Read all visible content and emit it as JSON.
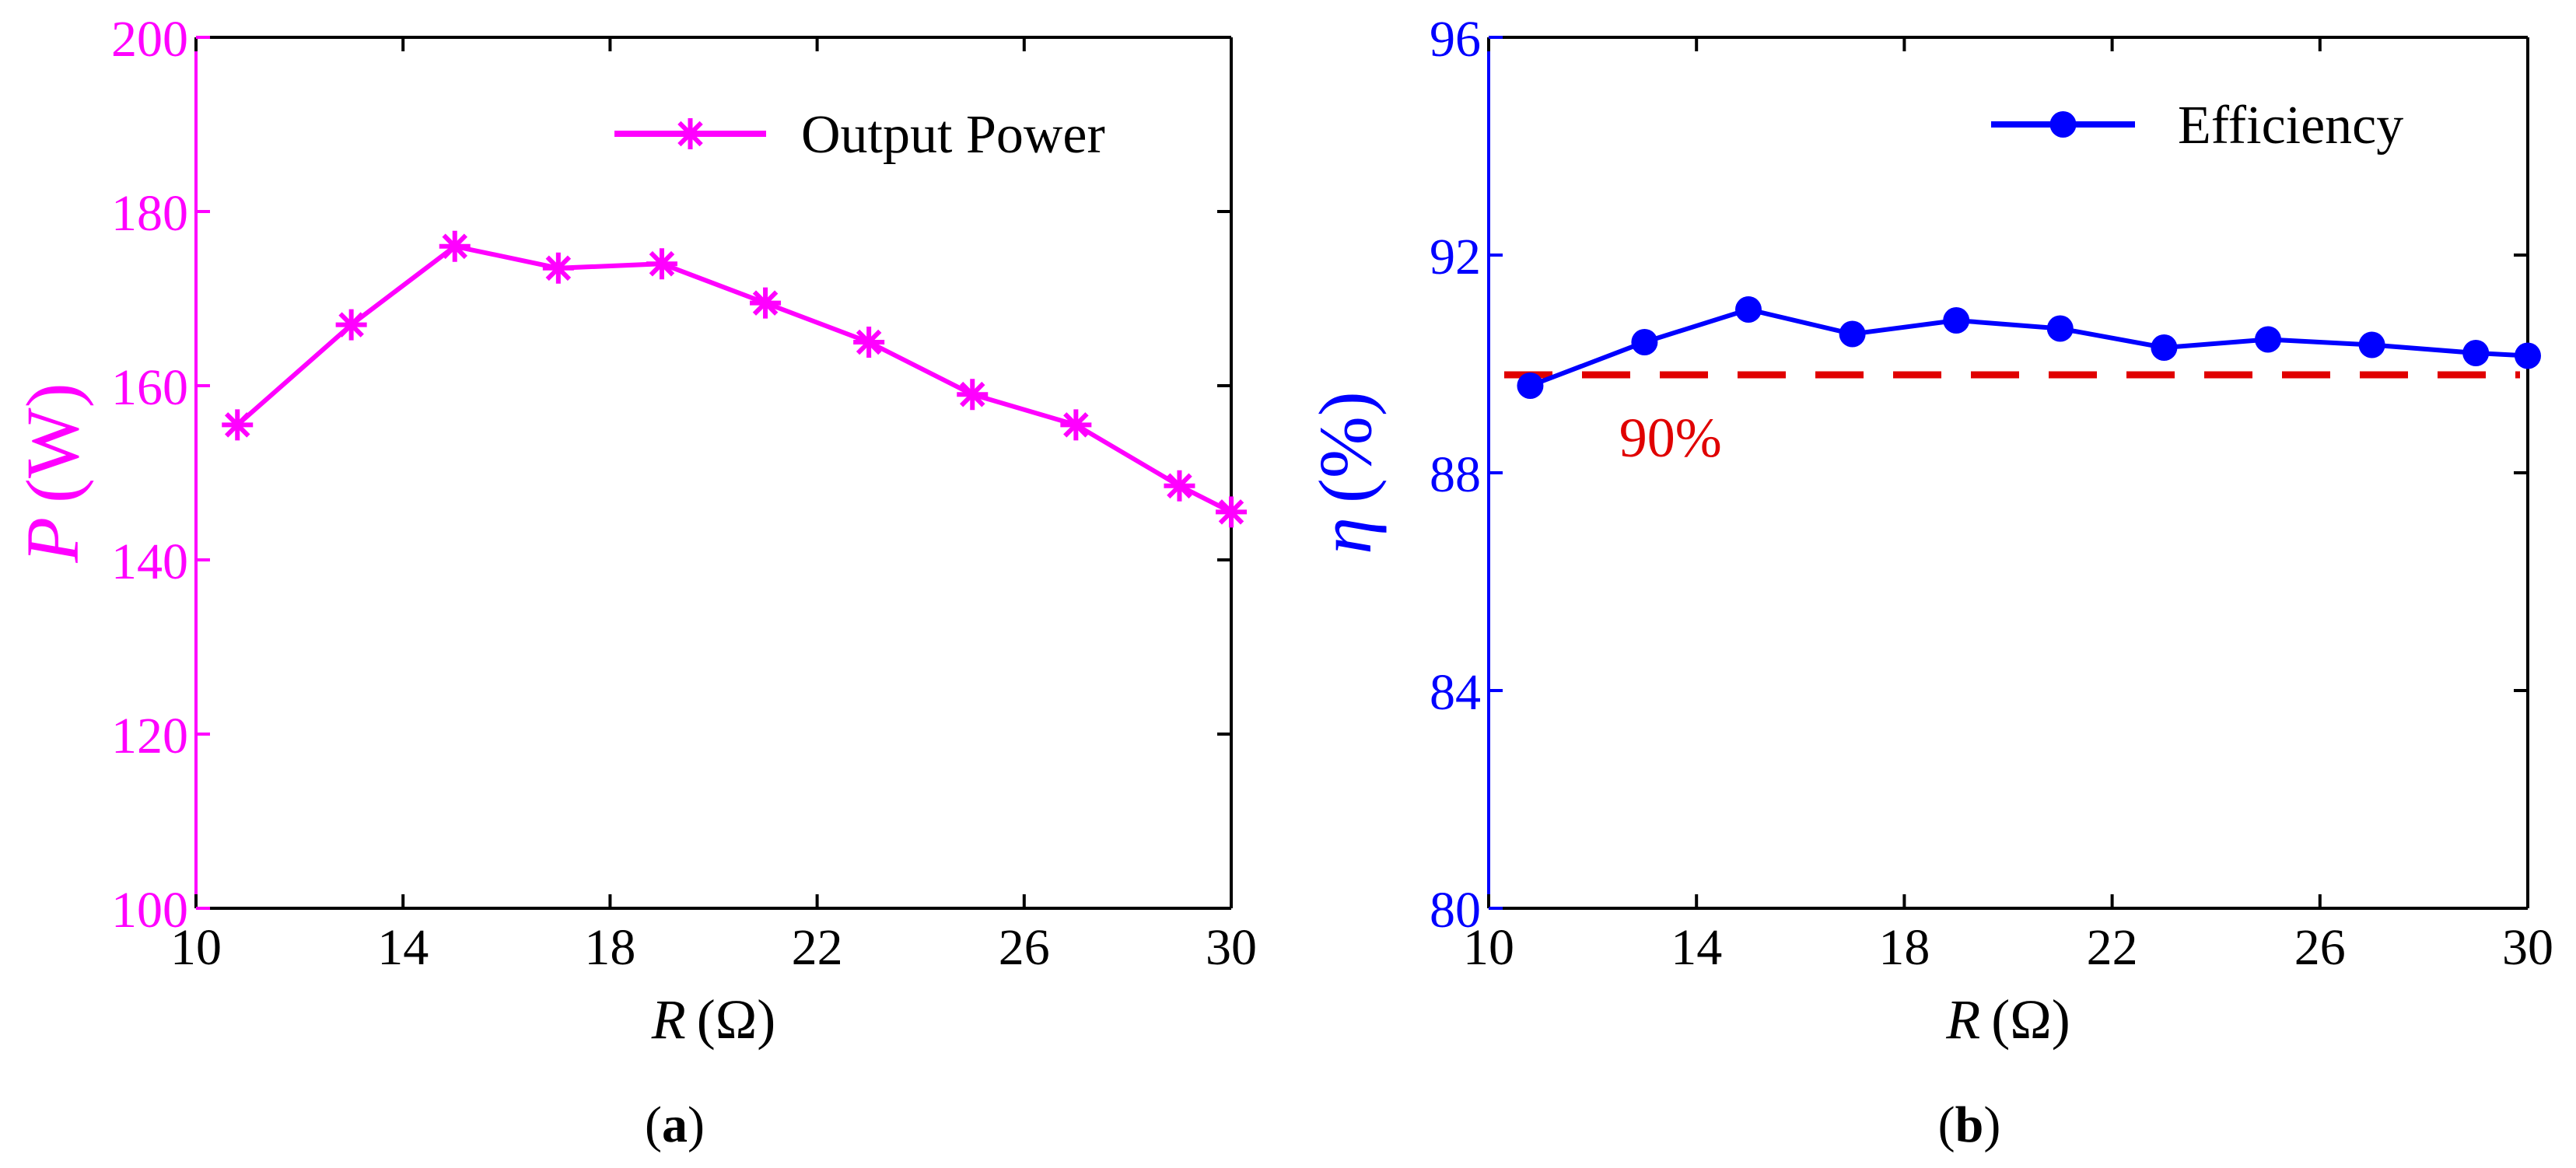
{
  "colors": {
    "power": "#FF00FF",
    "efficiency": "#0000FF",
    "threshold": "#E00000",
    "axis": "#000000"
  },
  "chart_data": [
    {
      "type": "line",
      "panel_label": "a",
      "xlabel": {
        "var": "R",
        "unit": "(Ω)"
      },
      "ylabel": {
        "var": "P",
        "unit": "(W)"
      },
      "xlim": [
        10,
        30
      ],
      "ylim": [
        100,
        200
      ],
      "xticks": [
        10,
        14,
        18,
        22,
        26,
        30
      ],
      "yticks": [
        100,
        120,
        140,
        160,
        180,
        200
      ],
      "grid": false,
      "legend_position": "top-right",
      "series": [
        {
          "name": "Output Power",
          "marker": "asterisk",
          "x": [
            10.8,
            13,
            15,
            17,
            19,
            21,
            23,
            25,
            27,
            29,
            30
          ],
          "y": [
            155.5,
            167,
            176,
            173.5,
            174,
            169.5,
            165,
            159,
            155.5,
            148.5,
            145.5
          ]
        }
      ]
    },
    {
      "type": "line",
      "panel_label": "b",
      "xlabel": {
        "var": "R",
        "unit": "(Ω)"
      },
      "ylabel": {
        "var": "η",
        "unit": "(%)"
      },
      "xlim": [
        10,
        30
      ],
      "ylim": [
        80,
        96
      ],
      "xticks": [
        10,
        14,
        18,
        22,
        26,
        30
      ],
      "yticks": [
        80,
        84,
        88,
        92,
        96
      ],
      "grid": false,
      "legend_position": "top-right",
      "series": [
        {
          "name": "Efficiency",
          "marker": "circle",
          "x": [
            10.8,
            13,
            15,
            17,
            19,
            21,
            23,
            25,
            27,
            29,
            30
          ],
          "y": [
            89.6,
            90.4,
            91.0,
            90.55,
            90.8,
            90.65,
            90.3,
            90.45,
            90.35,
            90.2,
            90.15
          ]
        }
      ],
      "reference_line": {
        "y": 89.8,
        "style": "dashed",
        "label": "90%"
      }
    }
  ]
}
